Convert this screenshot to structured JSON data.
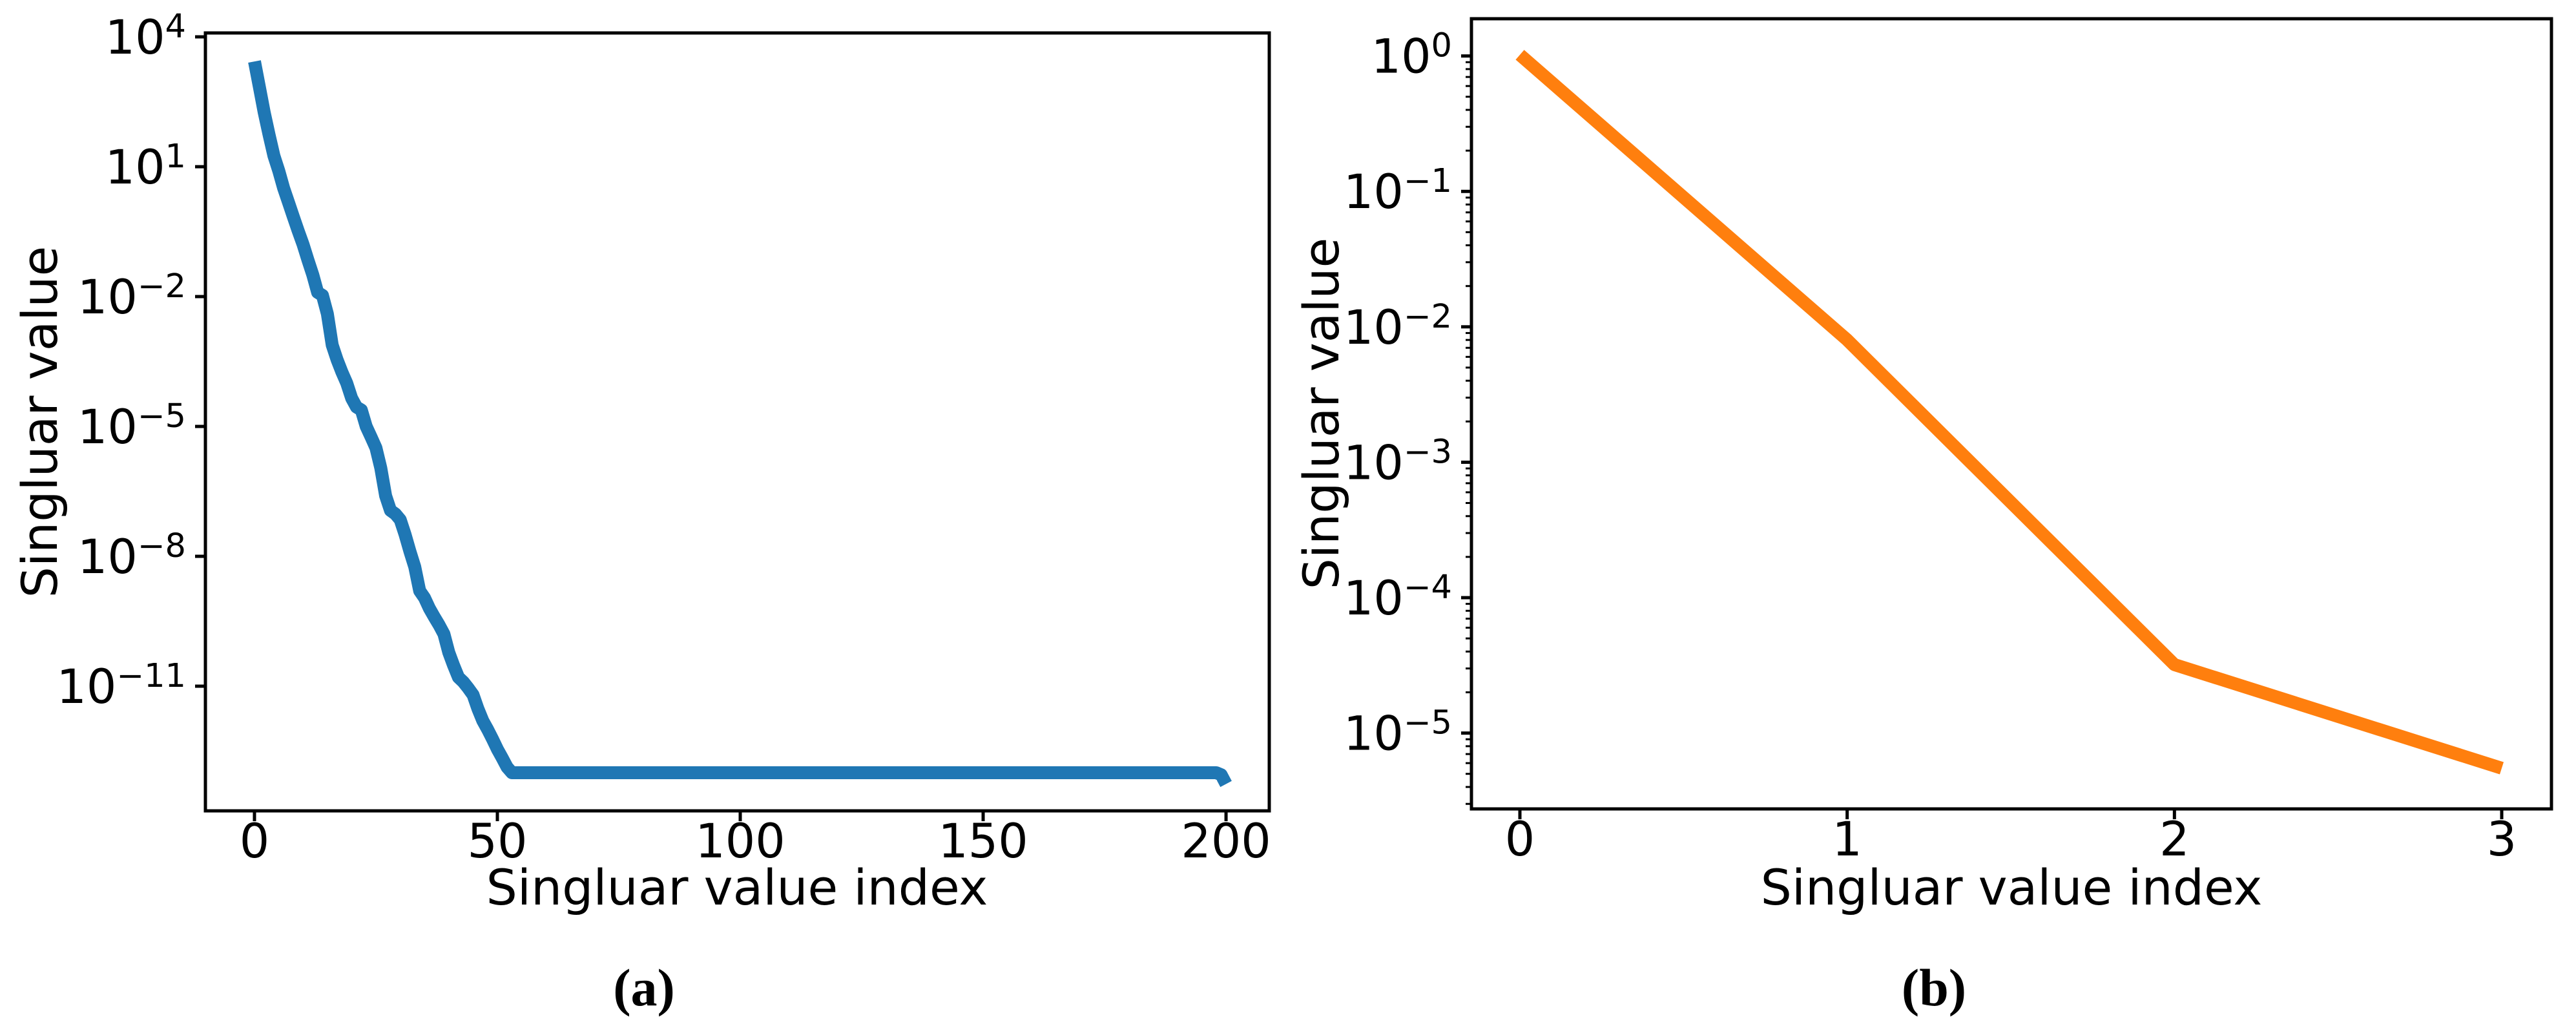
{
  "page": {
    "background": "#ffffff"
  },
  "chart_data": [
    {
      "id": "a",
      "type": "line",
      "caption": "(a)",
      "xlabel": "Singluar value index",
      "ylabel": "Singluar value",
      "yscale": "log",
      "line_color": "#1f77b4",
      "xlim": [
        -10.1,
        208.9
      ],
      "ylog_lim": [
        -13.88,
        4.09
      ],
      "xticks": [
        0,
        50,
        100,
        150,
        200
      ],
      "ytick_labels": [
        "10^4",
        "10^1",
        "10^-2",
        "10^-5",
        "10^-8",
        "10^-11"
      ],
      "minor_yticks": false,
      "grid": false,
      "legend": null,
      "points": [
        [
          0,
          2700.0
        ],
        [
          1,
          700.0
        ],
        [
          2,
          180.0
        ],
        [
          3,
          55.0
        ],
        [
          4,
          18.0
        ],
        [
          5,
          8
        ],
        [
          6,
          3.2
        ],
        [
          7,
          1.5
        ],
        [
          8,
          0.7
        ],
        [
          9,
          0.33
        ],
        [
          10,
          0.16
        ],
        [
          11,
          0.07
        ],
        [
          12,
          0.032
        ],
        [
          13,
          0.0125
        ],
        [
          14,
          0.0107
        ],
        [
          15,
          0.004
        ],
        [
          16,
          0.00076
        ],
        [
          17,
          0.00035
        ],
        [
          18,
          0.00018
        ],
        [
          19,
          0.0001
        ],
        [
          20,
          4.5e-05
        ],
        [
          21,
          2.8e-05
        ],
        [
          22,
          2.4e-05
        ],
        [
          23,
          1e-05
        ],
        [
          24,
          5.7e-06
        ],
        [
          25,
          3.2e-06
        ],
        [
          26,
          1.1e-06
        ],
        [
          27,
          2.5e-07
        ],
        [
          28,
          1.15e-07
        ],
        [
          29,
          9.5e-08
        ],
        [
          30,
          7e-08
        ],
        [
          31,
          3.2e-08
        ],
        [
          32,
          1.3e-08
        ],
        [
          33,
          5.7e-09
        ],
        [
          34,
          1.6e-09
        ],
        [
          35,
          1.1e-09
        ],
        [
          36,
          6.3e-10
        ],
        [
          37,
          4e-10
        ],
        [
          38,
          2.6e-10
        ],
        [
          39,
          1.6e-10
        ],
        [
          40,
          6e-11
        ],
        [
          41,
          3e-11
        ],
        [
          42,
          1.6e-11
        ],
        [
          43,
          1.25e-11
        ],
        [
          44,
          9e-12
        ],
        [
          45,
          6.3e-12
        ],
        [
          46,
          3e-12
        ],
        [
          47,
          1.6e-12
        ],
        [
          48,
          1e-12
        ],
        [
          49,
          6e-13
        ],
        [
          50,
          3.5e-13
        ],
        [
          51,
          2.2e-13
        ],
        [
          52,
          1.35e-13
        ],
        [
          53,
          1e-13
        ],
        [
          60,
          1e-13
        ],
        [
          80,
          1e-13
        ],
        [
          100,
          1e-13
        ],
        [
          120,
          1e-13
        ],
        [
          140,
          1e-13
        ],
        [
          160,
          1e-13
        ],
        [
          180,
          1e-13
        ],
        [
          198,
          1e-13
        ],
        [
          199,
          9e-14
        ],
        [
          200,
          5.5e-14
        ]
      ]
    },
    {
      "id": "b",
      "type": "line",
      "caption": "(b)",
      "xlabel": "Singluar value index",
      "ylabel": "Singluar value",
      "yscale": "log",
      "line_color": "#ff7f0e",
      "xlim": [
        -0.148,
        3.152
      ],
      "ylog_lim": [
        -5.56,
        0.275
      ],
      "xticks": [
        0,
        1,
        2,
        3
      ],
      "ytick_labels": [
        "10^0",
        "10^-1",
        "10^-2",
        "10^-3",
        "10^-4",
        "10^-5"
      ],
      "minor_yticks": true,
      "grid": false,
      "legend": null,
      "points": [
        [
          0,
          1.02
        ],
        [
          1,
          0.008
        ],
        [
          2,
          3.2e-05
        ],
        [
          3,
          5.5e-06
        ]
      ]
    }
  ]
}
